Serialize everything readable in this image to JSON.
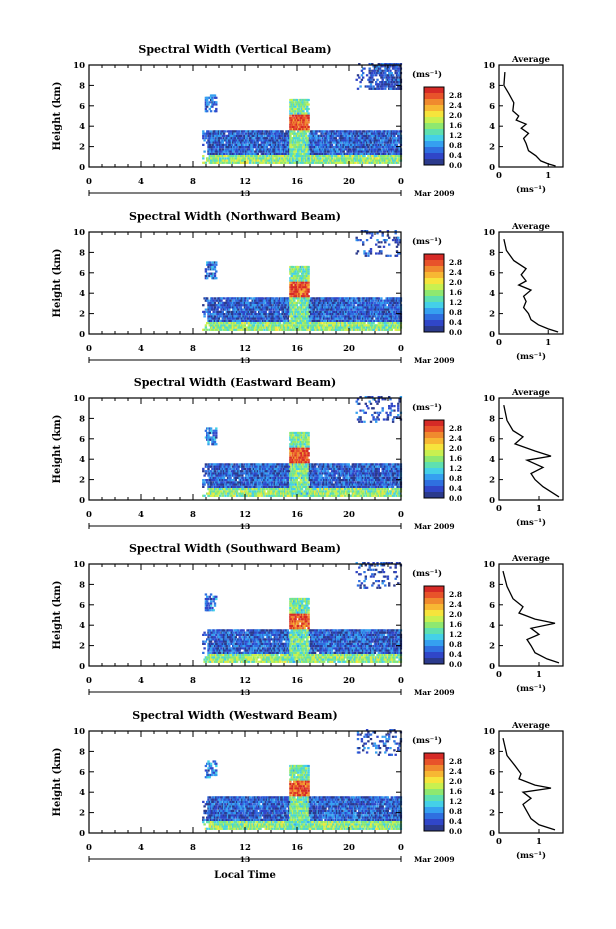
{
  "figure": {
    "xlabel": "Local Time",
    "date_label": "Mar 2009",
    "units_label": "(ms⁻¹)",
    "average_title": "Average",
    "average_xlabel": "(ms⁻¹)"
  },
  "colorbar": {
    "ticks": [
      "2.8",
      "2.4",
      "2.0",
      "1.6",
      "1.2",
      "0.8",
      "0.4",
      "0.0"
    ],
    "colors": [
      "#2b3a8c",
      "#3046c8",
      "#2f6fe0",
      "#35a0f0",
      "#44d0e8",
      "#5ee0b0",
      "#8ee870",
      "#c8f050",
      "#f6e43c",
      "#f7b733",
      "#f08a2e",
      "#e8532a",
      "#d62a26"
    ]
  },
  "chart_data": [
    {
      "type": "heatmap",
      "title": "Spectral Width (Vertical Beam)",
      "ylabel": "Height (km)",
      "xticks": [
        "0",
        "4",
        "8",
        "12",
        "16",
        "20",
        "0"
      ],
      "xlim": [
        0,
        24
      ],
      "ylim": [
        0,
        10
      ],
      "yticks": [
        "0",
        "2",
        "4",
        "6",
        "8",
        "10"
      ],
      "day_label": "13",
      "profile": {
        "xticks": [
          "0",
          "1"
        ],
        "xlim": [
          0,
          1.3
        ],
        "values": [
          [
            0.12,
            9.3
          ],
          [
            0.1,
            8.0
          ],
          [
            0.2,
            7.2
          ],
          [
            0.3,
            6.3
          ],
          [
            0.28,
            5.5
          ],
          [
            0.4,
            5.0
          ],
          [
            0.35,
            4.6
          ],
          [
            0.55,
            4.2
          ],
          [
            0.45,
            3.8
          ],
          [
            0.6,
            3.3
          ],
          [
            0.5,
            2.8
          ],
          [
            0.55,
            2.3
          ],
          [
            0.6,
            1.6
          ],
          [
            0.75,
            1.1
          ],
          [
            0.85,
            0.6
          ],
          [
            1.0,
            0.3
          ],
          [
            1.15,
            0.1
          ]
        ]
      }
    },
    {
      "type": "heatmap",
      "title": "Spectral Width (Northward Beam)",
      "ylabel": "Height (km)",
      "xticks": [
        "0",
        "4",
        "8",
        "12",
        "16",
        "20",
        "0"
      ],
      "xlim": [
        0,
        24
      ],
      "ylim": [
        0,
        10
      ],
      "yticks": [
        "0",
        "2",
        "4",
        "6",
        "8",
        "10"
      ],
      "day_label": "13",
      "profile": {
        "xticks": [
          "0",
          "1"
        ],
        "xlim": [
          0,
          1.3
        ],
        "values": [
          [
            0.1,
            9.3
          ],
          [
            0.15,
            8.2
          ],
          [
            0.3,
            7.2
          ],
          [
            0.55,
            6.4
          ],
          [
            0.45,
            5.8
          ],
          [
            0.55,
            5.2
          ],
          [
            0.4,
            4.8
          ],
          [
            0.65,
            4.3
          ],
          [
            0.5,
            3.7
          ],
          [
            0.55,
            3.2
          ],
          [
            0.5,
            2.6
          ],
          [
            0.6,
            2.0
          ],
          [
            0.65,
            1.4
          ],
          [
            0.8,
            0.9
          ],
          [
            1.0,
            0.5
          ],
          [
            1.2,
            0.2
          ]
        ]
      }
    },
    {
      "type": "heatmap",
      "title": "Spectral Width (Eastward Beam)",
      "ylabel": "Height (km)",
      "xticks": [
        "0",
        "4",
        "8",
        "12",
        "16",
        "20",
        "0"
      ],
      "xlim": [
        0,
        24
      ],
      "ylim": [
        0,
        10
      ],
      "yticks": [
        "0",
        "2",
        "4",
        "6",
        "8",
        "10"
      ],
      "day_label": "13",
      "profile": {
        "xticks": [
          "0",
          "1"
        ],
        "xlim": [
          0,
          1.6
        ],
        "values": [
          [
            0.12,
            9.3
          ],
          [
            0.2,
            7.8
          ],
          [
            0.35,
            6.8
          ],
          [
            0.6,
            6.2
          ],
          [
            0.4,
            5.5
          ],
          [
            0.9,
            4.8
          ],
          [
            1.3,
            4.3
          ],
          [
            0.7,
            3.9
          ],
          [
            1.1,
            3.2
          ],
          [
            0.8,
            2.6
          ],
          [
            0.9,
            2.0
          ],
          [
            1.1,
            1.3
          ],
          [
            1.3,
            0.8
          ],
          [
            1.5,
            0.3
          ]
        ]
      }
    },
    {
      "type": "heatmap",
      "title": "Spectral Width (Southward Beam)",
      "ylabel": "Height (km)",
      "xticks": [
        "0",
        "4",
        "8",
        "12",
        "16",
        "20",
        "0"
      ],
      "xlim": [
        0,
        24
      ],
      "ylim": [
        0,
        10
      ],
      "yticks": [
        "0",
        "2",
        "4",
        "6",
        "8",
        "10"
      ],
      "day_label": "13",
      "profile": {
        "xticks": [
          "0",
          "1"
        ],
        "xlim": [
          0,
          1.6
        ],
        "values": [
          [
            0.1,
            9.3
          ],
          [
            0.2,
            7.8
          ],
          [
            0.35,
            6.6
          ],
          [
            0.6,
            5.8
          ],
          [
            0.5,
            5.2
          ],
          [
            0.9,
            4.6
          ],
          [
            1.4,
            4.2
          ],
          [
            0.8,
            3.7
          ],
          [
            1.0,
            3.1
          ],
          [
            0.7,
            2.6
          ],
          [
            0.8,
            2.0
          ],
          [
            0.9,
            1.3
          ],
          [
            1.2,
            0.7
          ],
          [
            1.5,
            0.3
          ]
        ]
      }
    },
    {
      "type": "heatmap",
      "title": "Spectral Width (Westward Beam)",
      "ylabel": "Height (km)",
      "xticks": [
        "0",
        "4",
        "8",
        "12",
        "16",
        "20",
        "0"
      ],
      "xlim": [
        0,
        24
      ],
      "ylim": [
        0,
        10
      ],
      "yticks": [
        "0",
        "2",
        "4",
        "6",
        "8",
        "10"
      ],
      "day_label": "13",
      "profile": {
        "xticks": [
          "0",
          "1"
        ],
        "xlim": [
          0,
          1.6
        ],
        "values": [
          [
            0.1,
            9.3
          ],
          [
            0.2,
            7.6
          ],
          [
            0.4,
            6.6
          ],
          [
            0.55,
            5.8
          ],
          [
            0.5,
            5.3
          ],
          [
            0.9,
            4.7
          ],
          [
            1.3,
            4.4
          ],
          [
            0.6,
            4.0
          ],
          [
            0.8,
            3.4
          ],
          [
            0.6,
            2.8
          ],
          [
            0.7,
            2.1
          ],
          [
            0.8,
            1.4
          ],
          [
            1.0,
            0.8
          ],
          [
            1.4,
            0.3
          ]
        ]
      }
    }
  ]
}
